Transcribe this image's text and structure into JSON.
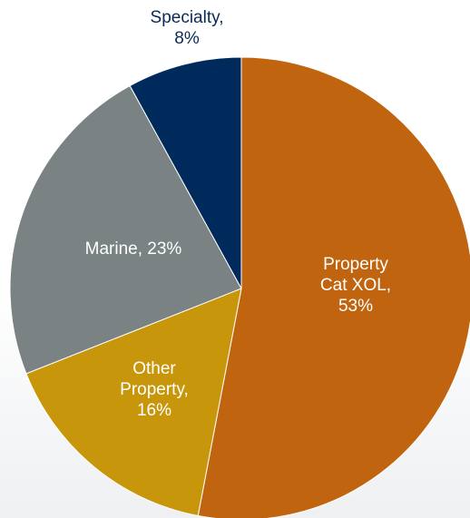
{
  "chart_data": {
    "type": "pie",
    "title": "",
    "start_angle_deg": 0,
    "direction": "clockwise",
    "slices": [
      {
        "name": "Property Cat XOL",
        "value": 53,
        "label_lines": [
          "Property",
          "Cat XOL,",
          "53%"
        ],
        "color": "#C0640F",
        "label_color": "#ffffff"
      },
      {
        "name": "Other Property",
        "value": 16,
        "label_lines": [
          "Other",
          "Property,",
          "16%"
        ],
        "color": "#C8960A",
        "label_color": "#ffffff"
      },
      {
        "name": "Marine",
        "value": 23,
        "label_lines": [
          "Marine, 23%"
        ],
        "color": "#7A8284",
        "label_color": "#ffffff"
      },
      {
        "name": "Specialty",
        "value": 8,
        "label_lines": [
          "Specialty,",
          "8%"
        ],
        "color": "#002A5C",
        "label_color": "#0B2A55",
        "label_outside": true
      }
    ]
  }
}
